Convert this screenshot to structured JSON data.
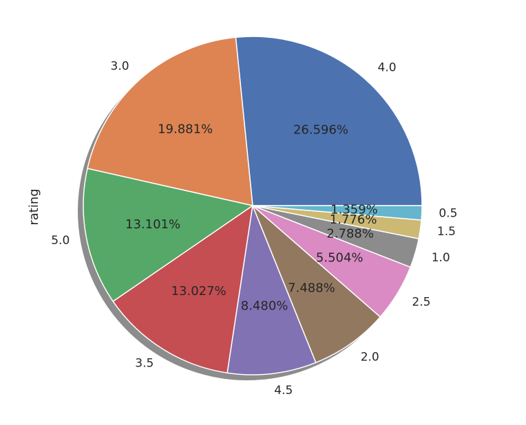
{
  "chart_data": {
    "type": "pie",
    "ylabel": "rating",
    "shadow": true,
    "start_angle_deg": 0,
    "direction": "counterclockwise",
    "slices": [
      {
        "label": "4.0",
        "value": 26.596,
        "pct_label": "26.596%",
        "color": "#4c72b0"
      },
      {
        "label": "3.0",
        "value": 19.881,
        "pct_label": "19.881%",
        "color": "#dd8452"
      },
      {
        "label": "5.0",
        "value": 13.101,
        "pct_label": "13.101%",
        "color": "#55a868"
      },
      {
        "label": "3.5",
        "value": 13.027,
        "pct_label": "13.027%",
        "color": "#c44e52"
      },
      {
        "label": "4.5",
        "value": 8.48,
        "pct_label": "8.480%",
        "color": "#8172b3"
      },
      {
        "label": "2.0",
        "value": 7.488,
        "pct_label": "7.488%",
        "color": "#937860"
      },
      {
        "label": "2.5",
        "value": 5.504,
        "pct_label": "5.504%",
        "color": "#da8bc3"
      },
      {
        "label": "1.0",
        "value": 2.788,
        "pct_label": "2.788%",
        "color": "#8c8c8c"
      },
      {
        "label": "1.5",
        "value": 1.776,
        "pct_label": "1.776%",
        "color": "#ccb974"
      },
      {
        "label": "0.5",
        "value": 1.359,
        "pct_label": "1.359%",
        "color": "#64b5cd"
      }
    ]
  }
}
